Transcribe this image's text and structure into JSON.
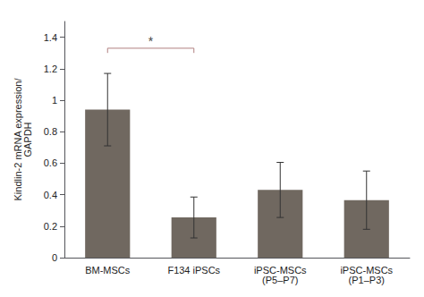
{
  "chart_data": {
    "type": "bar",
    "ylabel": "Kindlin-2 mRNA expression/\nGAPDH",
    "categories": [
      "BM-MSCs",
      "F134 iPSCs",
      "iPSC-MSCs\n(P5–P7)",
      "iPSC-MSCs\n(P1–P3)"
    ],
    "values": [
      0.94,
      0.255,
      0.43,
      0.365
    ],
    "errors": [
      0.23,
      0.13,
      0.175,
      0.185
    ],
    "color": "#706860",
    "ylim": [
      0,
      1.5
    ],
    "yticks": [
      0,
      0.2,
      0.4,
      0.6,
      0.8,
      1,
      1.2,
      1.4
    ],
    "grid": false,
    "annotations": [
      {
        "text": "*",
        "x1": "BM-MSCs",
        "x2": "F134 iPSCs",
        "y": 1.33,
        "tick_drop": 0.03,
        "color": "#b08080"
      }
    ]
  }
}
